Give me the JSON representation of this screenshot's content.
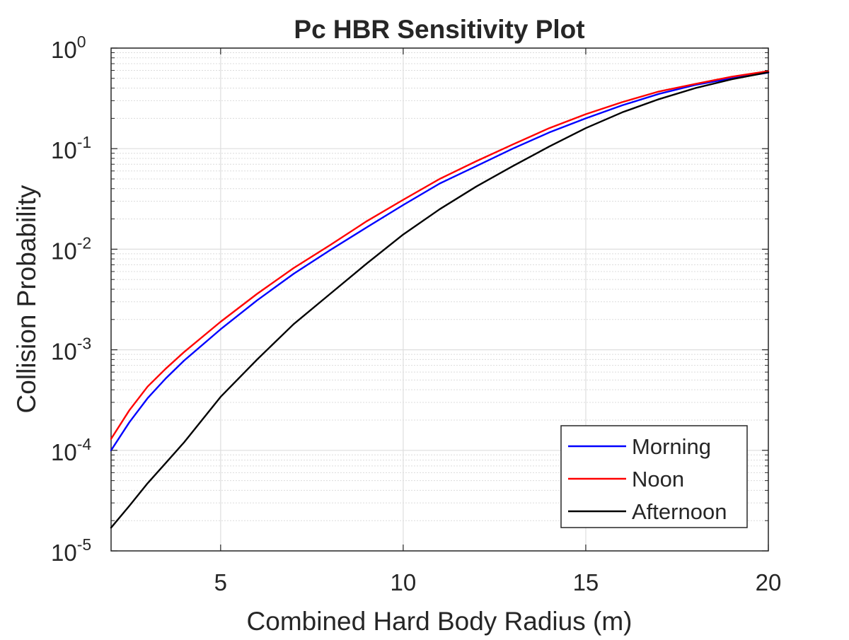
{
  "chart_data": {
    "type": "line",
    "title": "Pc HBR Sensitivity Plot",
    "xlabel": "Combined Hard Body Radius (m)",
    "ylabel": "Collision Probability",
    "x_scale": "linear",
    "y_scale": "log",
    "xlim": [
      2,
      20
    ],
    "ylim": [
      1e-05,
      1
    ],
    "x_ticks": [
      5,
      10,
      15,
      20
    ],
    "x_tick_labels": [
      "5",
      "10",
      "15",
      "20"
    ],
    "y_ticks": [
      1e-05,
      0.0001,
      0.001,
      0.01,
      0.1,
      1
    ],
    "y_tick_labels": [
      {
        "base": "10",
        "exp": "-5"
      },
      {
        "base": "10",
        "exp": "-4"
      },
      {
        "base": "10",
        "exp": "-3"
      },
      {
        "base": "10",
        "exp": "-2"
      },
      {
        "base": "10",
        "exp": "-1"
      },
      {
        "base": "10",
        "exp": "0"
      }
    ],
    "grid": true,
    "minor_grid": true,
    "legend_position": "bottom-right",
    "series": [
      {
        "name": "Morning",
        "color": "#0000ff",
        "x": [
          2,
          2.5,
          3,
          3.5,
          4,
          5,
          6,
          7,
          8,
          9,
          10,
          11,
          12,
          13,
          14,
          15,
          16,
          17,
          18,
          19,
          20
        ],
        "y": [
          0.0001,
          0.00019,
          0.00033,
          0.00052,
          0.00078,
          0.0016,
          0.0031,
          0.0057,
          0.0098,
          0.0165,
          0.0275,
          0.045,
          0.067,
          0.1,
          0.145,
          0.2,
          0.27,
          0.35,
          0.43,
          0.5,
          0.57
        ]
      },
      {
        "name": "Noon",
        "color": "#ff0000",
        "x": [
          2,
          2.5,
          3,
          3.5,
          4,
          5,
          6,
          7,
          8,
          9,
          10,
          11,
          12,
          13,
          14,
          15,
          16,
          17,
          18,
          19,
          20
        ],
        "y": [
          0.00013,
          0.00025,
          0.00043,
          0.00065,
          0.00095,
          0.0019,
          0.0036,
          0.0065,
          0.011,
          0.019,
          0.031,
          0.05,
          0.075,
          0.11,
          0.16,
          0.22,
          0.29,
          0.37,
          0.44,
          0.52,
          0.59
        ]
      },
      {
        "name": "Afternoon",
        "color": "#000000",
        "x": [
          2,
          2.5,
          3,
          3.5,
          4,
          5,
          6,
          7,
          8,
          9,
          10,
          11,
          12,
          13,
          14,
          15,
          16,
          17,
          18,
          19,
          20
        ],
        "y": [
          1.7e-05,
          2.8e-05,
          4.7e-05,
          7.5e-05,
          0.00012,
          0.00034,
          0.0008,
          0.0018,
          0.0036,
          0.0072,
          0.014,
          0.025,
          0.042,
          0.067,
          0.105,
          0.16,
          0.23,
          0.31,
          0.4,
          0.49,
          0.575
        ]
      }
    ]
  }
}
